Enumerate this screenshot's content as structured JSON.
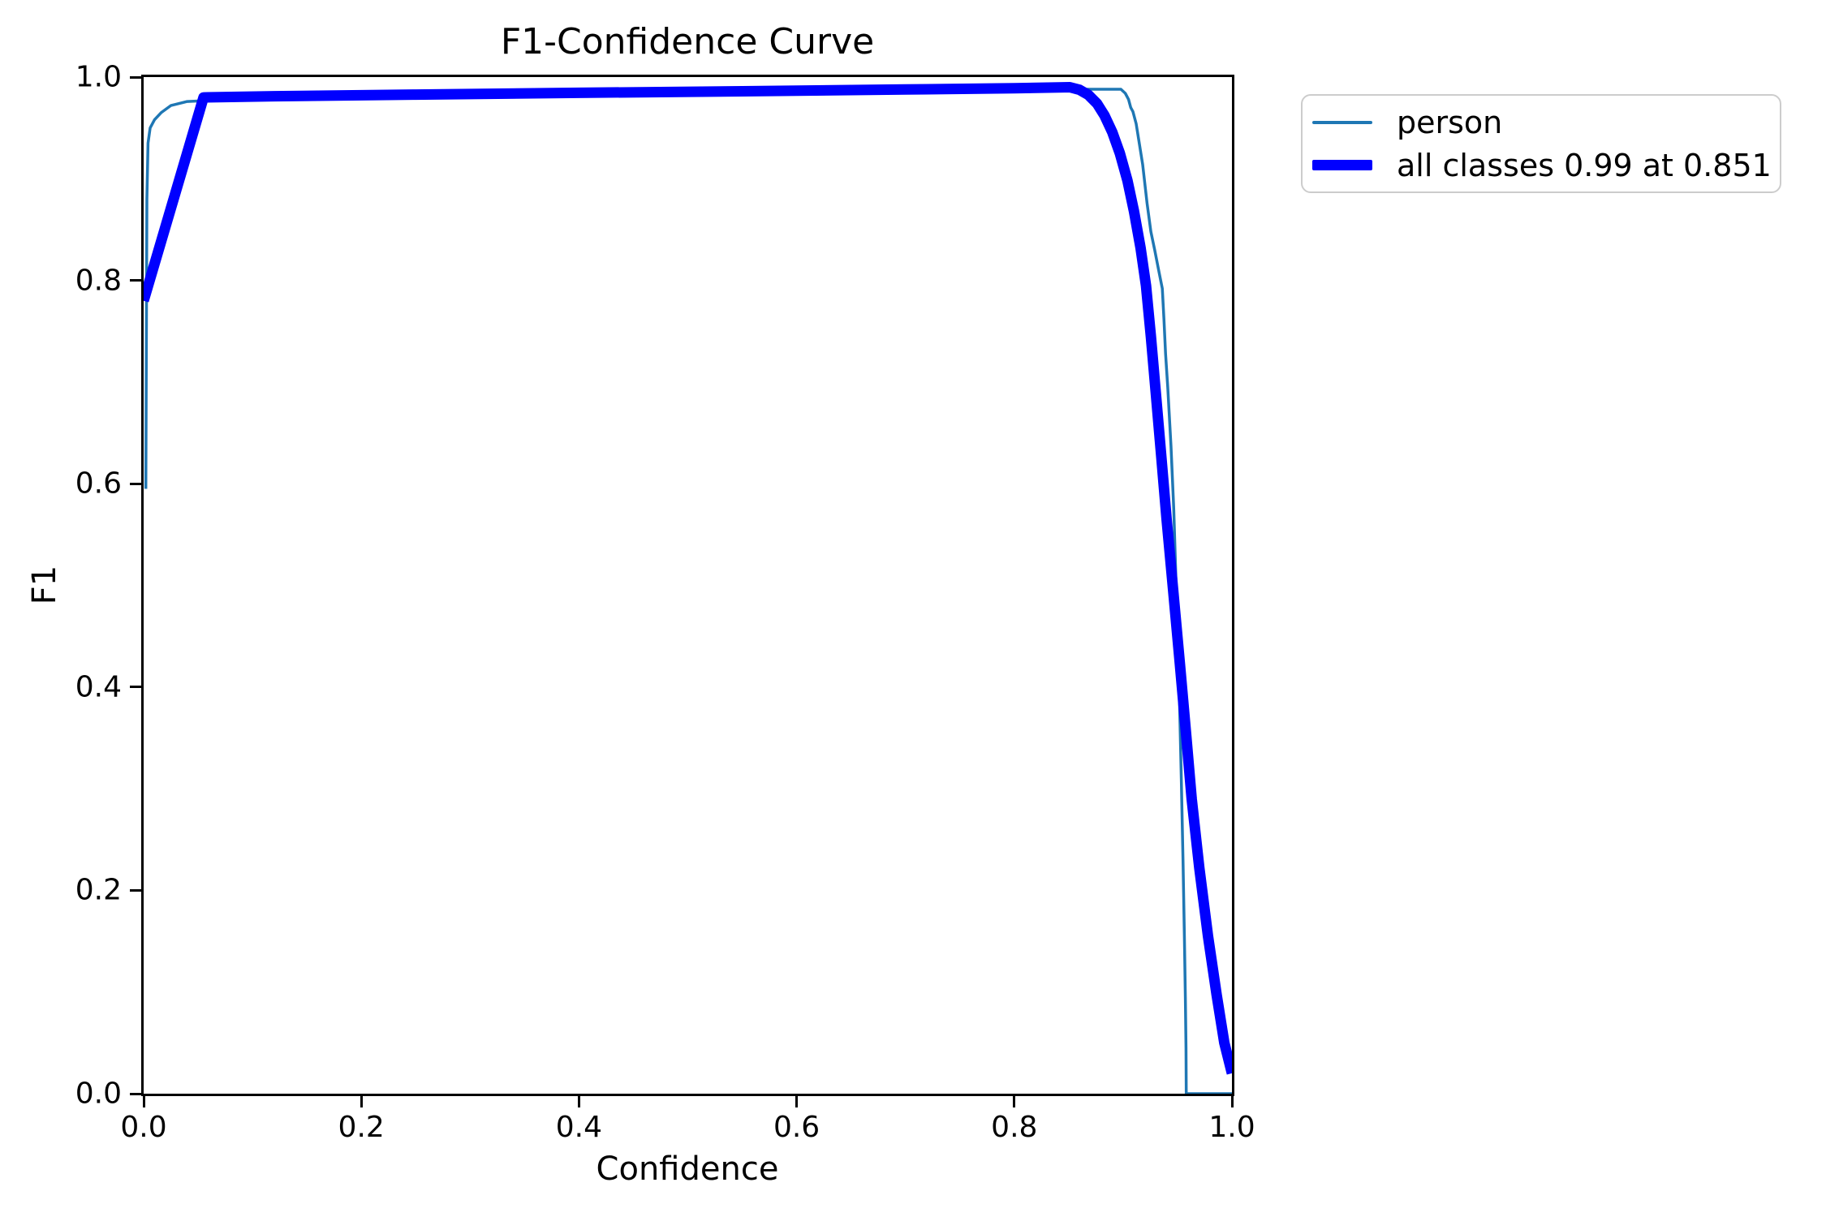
{
  "figure": {
    "background": "#ffffff",
    "spine_color": "#000000",
    "text_color": "#000000"
  },
  "chart_data": {
    "type": "line",
    "title": "F1-Confidence Curve",
    "xlabel": "Confidence",
    "ylabel": "F1",
    "xlim": [
      0.0,
      1.0
    ],
    "ylim": [
      0.0,
      1.0
    ],
    "xticks": [
      0.0,
      0.2,
      0.4,
      0.6,
      0.8,
      1.0
    ],
    "yticks": [
      0.0,
      0.2,
      0.4,
      0.6,
      0.8,
      1.0
    ],
    "xtick_labels": [
      "0.0",
      "0.2",
      "0.4",
      "0.6",
      "0.8",
      "1.0"
    ],
    "ytick_labels": [
      "0.0",
      "0.2",
      "0.4",
      "0.6",
      "0.8",
      "1.0"
    ],
    "grid": false,
    "best_f1": 0.99,
    "best_confidence": 0.851,
    "legend": {
      "position": "outside-upper-right",
      "border_color": "#cccccc",
      "entries": [
        {
          "label": "person",
          "color": "#1f77b4",
          "linewidth": 4
        },
        {
          "label": "all classes 0.99 at 0.851",
          "color": "#0000ff",
          "linewidth": 13
        }
      ]
    },
    "series": [
      {
        "name": "person",
        "color": "#1f77b4",
        "linewidth": 3.5,
        "points": [
          [
            0.002,
            0.595
          ],
          [
            0.0025,
            0.75
          ],
          [
            0.003,
            0.88
          ],
          [
            0.004,
            0.935
          ],
          [
            0.006,
            0.95
          ],
          [
            0.01,
            0.958
          ],
          [
            0.016,
            0.965
          ],
          [
            0.025,
            0.972
          ],
          [
            0.04,
            0.976
          ],
          [
            0.08,
            0.978
          ],
          [
            0.15,
            0.98
          ],
          [
            0.25,
            0.981
          ],
          [
            0.35,
            0.982
          ],
          [
            0.45,
            0.9835
          ],
          [
            0.55,
            0.9845
          ],
          [
            0.65,
            0.9855
          ],
          [
            0.75,
            0.9868
          ],
          [
            0.82,
            0.9875
          ],
          [
            0.86,
            0.988
          ],
          [
            0.898,
            0.988
          ],
          [
            0.902,
            0.984
          ],
          [
            0.905,
            0.978
          ],
          [
            0.907,
            0.97
          ],
          [
            0.909,
            0.966
          ],
          [
            0.912,
            0.954
          ],
          [
            0.915,
            0.934
          ],
          [
            0.918,
            0.914
          ],
          [
            0.922,
            0.876
          ],
          [
            0.9255,
            0.848
          ],
          [
            0.929,
            0.83
          ],
          [
            0.933,
            0.808
          ],
          [
            0.936,
            0.792
          ],
          [
            0.9375,
            0.762
          ],
          [
            0.939,
            0.728
          ],
          [
            0.941,
            0.695
          ],
          [
            0.944,
            0.637
          ],
          [
            0.9465,
            0.575
          ],
          [
            0.949,
            0.49
          ],
          [
            0.9515,
            0.4
          ],
          [
            0.9535,
            0.31
          ],
          [
            0.955,
            0.23
          ],
          [
            0.9563,
            0.155
          ],
          [
            0.9572,
            0.095
          ],
          [
            0.9578,
            0.045
          ],
          [
            0.958,
            0.0
          ],
          [
            1.0,
            0.0
          ]
        ]
      },
      {
        "name": "all classes",
        "color": "#0000ff",
        "linewidth": 13,
        "points": [
          [
            0.0,
            0.78
          ],
          [
            0.055,
            0.98
          ],
          [
            0.12,
            0.9812
          ],
          [
            0.25,
            0.9828
          ],
          [
            0.4,
            0.9845
          ],
          [
            0.55,
            0.986
          ],
          [
            0.7,
            0.9878
          ],
          [
            0.8,
            0.989
          ],
          [
            0.851,
            0.99
          ],
          [
            0.86,
            0.9875
          ],
          [
            0.868,
            0.9825
          ],
          [
            0.876,
            0.974
          ],
          [
            0.883,
            0.962
          ],
          [
            0.89,
            0.946
          ],
          [
            0.897,
            0.925
          ],
          [
            0.904,
            0.898
          ],
          [
            0.91,
            0.868
          ],
          [
            0.916,
            0.832
          ],
          [
            0.921,
            0.795
          ],
          [
            0.9255,
            0.745
          ],
          [
            0.93,
            0.69
          ],
          [
            0.935,
            0.628
          ],
          [
            0.94,
            0.565
          ],
          [
            0.946,
            0.495
          ],
          [
            0.952,
            0.425
          ],
          [
            0.958,
            0.352
          ],
          [
            0.963,
            0.29
          ],
          [
            0.97,
            0.222
          ],
          [
            0.978,
            0.155
          ],
          [
            0.986,
            0.097
          ],
          [
            0.993,
            0.05
          ],
          [
            1.0,
            0.02
          ]
        ]
      }
    ]
  }
}
